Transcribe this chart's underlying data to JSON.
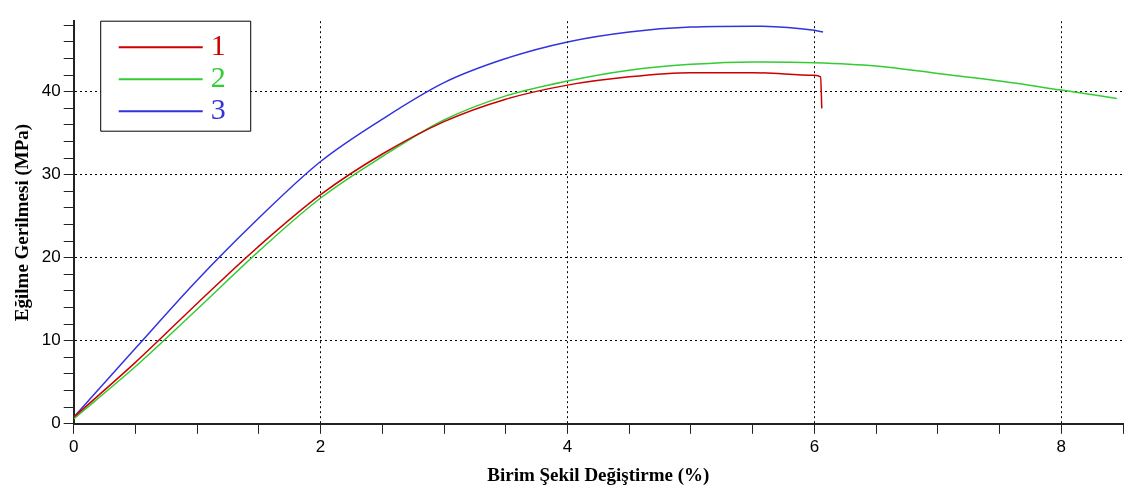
{
  "chart_data": {
    "type": "line",
    "xlabel": "Birim Şekil Değiştirme (%)",
    "ylabel": "Eğilme Gerilmesi (MPa)",
    "xlim": [
      0,
      8.5
    ],
    "ylim": [
      0,
      48.5
    ],
    "xticks": [
      0,
      {
        "value": 0.5,
        "label": null
      },
      {
        "value": 1,
        "label": null
      },
      {
        "value": 1.5,
        "label": null
      },
      2,
      {
        "value": 2.5,
        "label": null
      },
      {
        "value": 3,
        "label": null
      },
      {
        "value": 3.5,
        "label": null
      },
      4,
      {
        "value": 4.5,
        "label": null
      },
      {
        "value": 5,
        "label": null
      },
      {
        "value": 5.5,
        "label": null
      },
      6,
      {
        "value": 6.5,
        "label": null
      },
      {
        "value": 7,
        "label": null
      },
      {
        "value": 7.5,
        "label": null
      },
      8,
      {
        "value": 8.5,
        "label": null
      }
    ],
    "yticks": [
      0,
      {
        "value": 2,
        "label": null
      },
      {
        "value": 4,
        "label": null
      },
      {
        "value": 6,
        "label": null
      },
      {
        "value": 8,
        "label": null
      },
      10,
      {
        "value": 12,
        "label": null
      },
      {
        "value": 14,
        "label": null
      },
      {
        "value": 16,
        "label": null
      },
      {
        "value": 18,
        "label": null
      },
      20,
      {
        "value": 22,
        "label": null
      },
      {
        "value": 24,
        "label": null
      },
      {
        "value": 26,
        "label": null
      },
      {
        "value": 28,
        "label": null
      },
      30,
      {
        "value": 32,
        "label": null
      },
      {
        "value": 34,
        "label": null
      },
      {
        "value": 36,
        "label": null
      },
      {
        "value": 38,
        "label": null
      },
      40,
      {
        "value": 42,
        "label": null
      },
      {
        "value": 44,
        "label": null
      },
      {
        "value": 46,
        "label": null
      },
      {
        "value": 48,
        "label": null
      }
    ],
    "grid": true,
    "legend": "top left",
    "marker": "none",
    "line_style": "solid",
    "series": [
      {
        "name": "1",
        "color": "#cc0000",
        "x": [
          0,
          0.5,
          1,
          1.5,
          2,
          2.5,
          3,
          3.5,
          4,
          4.5,
          5,
          5.5,
          6,
          6.05,
          6.06
        ],
        "values": [
          0.8,
          7.4,
          14.5,
          21.4,
          27.6,
          32.5,
          36.4,
          39.1,
          40.8,
          41.8,
          42.3,
          42.3,
          42.0,
          41.8,
          38.0
        ]
      },
      {
        "name": "2",
        "color": "#33cc33",
        "x": [
          0,
          0.5,
          1,
          1.5,
          2,
          2.5,
          3,
          3.5,
          4,
          4.5,
          5,
          5.5,
          6,
          6.5,
          7,
          7.5,
          8,
          8.45
        ],
        "values": [
          0.6,
          6.9,
          13.8,
          20.8,
          27.2,
          32.2,
          36.6,
          39.5,
          41.3,
          42.6,
          43.3,
          43.6,
          43.5,
          43.1,
          42.2,
          41.3,
          40.2,
          39.2
        ]
      },
      {
        "name": "3",
        "color": "#3333dd",
        "x": [
          0,
          0.5,
          1,
          1.5,
          2,
          2.5,
          3,
          3.5,
          4,
          4.5,
          5,
          5.5,
          6,
          6.07
        ],
        "values": [
          0.8,
          9.1,
          17.3,
          24.8,
          31.6,
          36.7,
          41.1,
          44.0,
          46.0,
          47.2,
          47.8,
          47.9,
          47.4,
          47.2
        ]
      }
    ]
  }
}
